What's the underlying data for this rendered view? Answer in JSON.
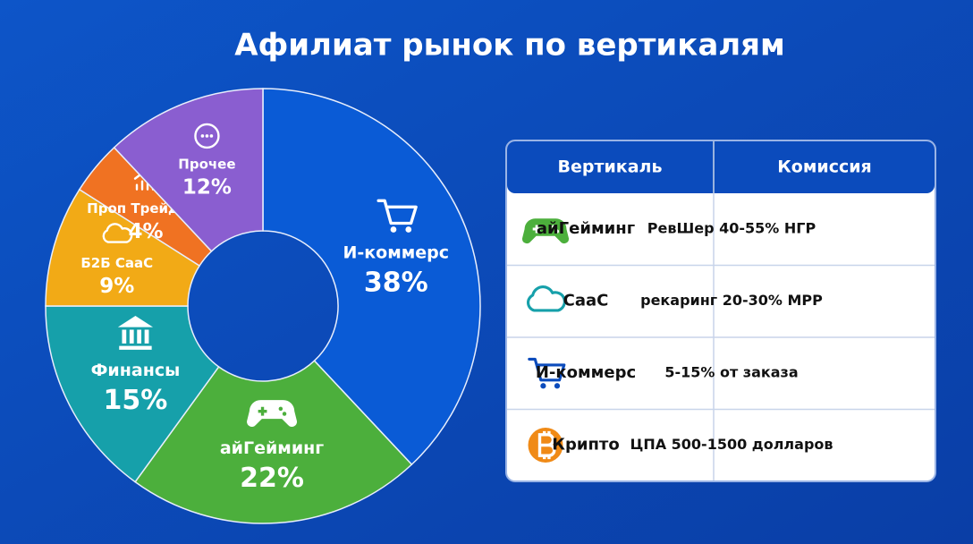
{
  "chart_data": {
    "type": "pie",
    "title": "Афилиат рынок по вертикалям",
    "categories": [
      "И-коммерс",
      "айГейминг",
      "Финансы",
      "Б2Б СааС",
      "Проп Трейдинг",
      "Прочее"
    ],
    "values": [
      38,
      22,
      15,
      9,
      4,
      12
    ],
    "value_labels": [
      "38%",
      "22%",
      "15%",
      "9%",
      "4%",
      "12%"
    ],
    "colors": [
      "#0a5bd6",
      "#4caf3c",
      "#16a0aa",
      "#f2aa16",
      "#f07222",
      "#8a5ed0"
    ]
  },
  "table": {
    "header": [
      "Вертикаль",
      "Комиссия"
    ],
    "rows": [
      [
        "айГейминг",
        "РевШер 40-55% НГР"
      ],
      [
        "СааС",
        "рекаринг 20-30% МРР"
      ],
      [
        "И-коммерс",
        "5-15% от заказа"
      ],
      [
        "Крипто",
        "ЦПА 500-1500 долларов"
      ]
    ]
  }
}
